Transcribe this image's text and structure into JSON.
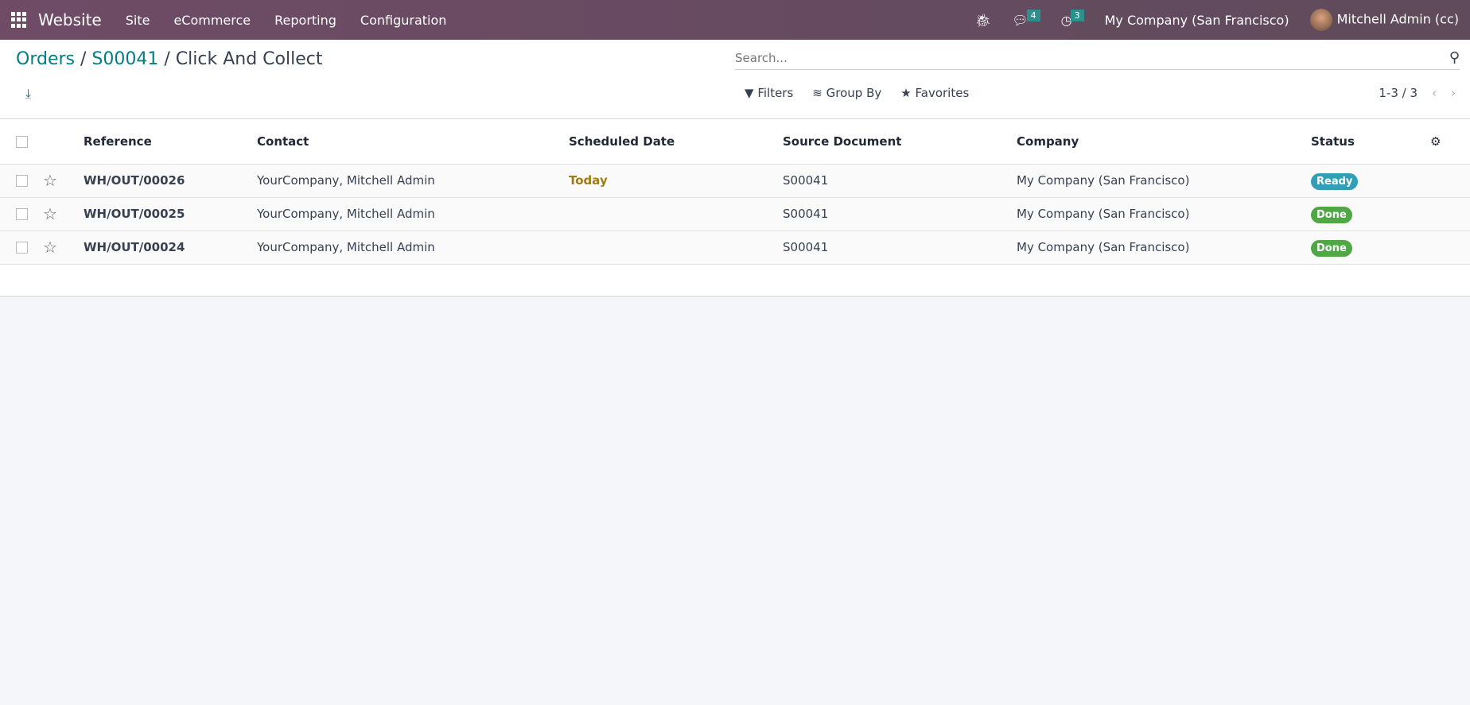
{
  "navbar": {
    "brand": "Website",
    "menus": [
      "Site",
      "eCommerce",
      "Reporting",
      "Configuration"
    ],
    "messages_count": "4",
    "activities_count": "3",
    "company": "My Company (San Francisco)",
    "user": "Mitchell Admin (cc)"
  },
  "breadcrumb": {
    "items": [
      "Orders",
      "S00041"
    ],
    "current": "Click And Collect",
    "sep": "/"
  },
  "search": {
    "placeholder": "Search..."
  },
  "toolbar": {
    "filters": "Filters",
    "group_by": "Group By",
    "favorites": "Favorites",
    "pager": "1-3 / 3"
  },
  "table": {
    "headers": [
      "Reference",
      "Contact",
      "Scheduled Date",
      "Source Document",
      "Company",
      "Status"
    ],
    "rows": [
      {
        "reference": "WH/OUT/00026",
        "contact": "YourCompany, Mitchell Admin",
        "scheduled": "Today",
        "source": "S00041",
        "company": "My Company (San Francisco)",
        "status": "Ready"
      },
      {
        "reference": "WH/OUT/00025",
        "contact": "YourCompany, Mitchell Admin",
        "scheduled": "",
        "source": "S00041",
        "company": "My Company (San Francisco)",
        "status": "Done"
      },
      {
        "reference": "WH/OUT/00024",
        "contact": "YourCompany, Mitchell Admin",
        "scheduled": "",
        "source": "S00041",
        "company": "My Company (San Francisco)",
        "status": "Done"
      }
    ]
  },
  "colors": {
    "navbar": "#6f4b66",
    "accent": "#017e84",
    "ready": "#30a0b8",
    "done": "#4ea843",
    "today": "#a07a15"
  }
}
